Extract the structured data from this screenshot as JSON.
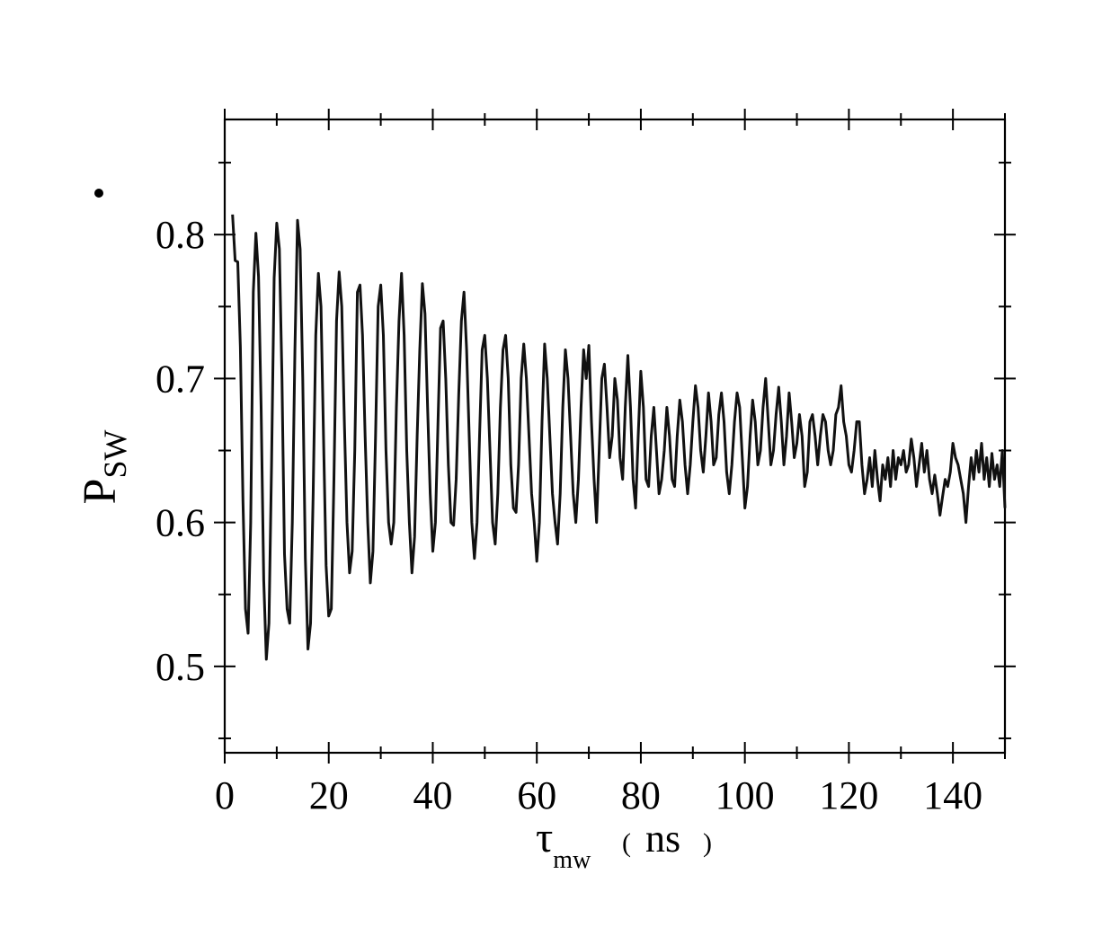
{
  "chart_data": {
    "type": "line",
    "xlabel": {
      "symbol": "τ",
      "subscript": "mw",
      "unit_open": "(",
      "unit": "ns",
      "unit_close": ")"
    },
    "ylabel": {
      "symbol": "P",
      "subscript": "SW"
    },
    "xlim": [
      0,
      150
    ],
    "ylim": [
      0.44,
      0.88
    ],
    "x_ticks": [
      0,
      20,
      40,
      60,
      80,
      100,
      120,
      140
    ],
    "x_tick_labels": [
      "0",
      "20",
      "40",
      "60",
      "80",
      "100",
      "120",
      "140"
    ],
    "x_minor_ticks": [
      10,
      30,
      50,
      70,
      90,
      110,
      130,
      150
    ],
    "y_ticks": [
      0.5,
      0.6,
      0.7,
      0.8
    ],
    "y_tick_labels": [
      "0.5",
      "0.6",
      "0.7",
      "0.8"
    ],
    "y_minor_ticks": [
      0.45,
      0.55,
      0.65,
      0.75,
      0.85
    ],
    "grid": false,
    "series": [
      {
        "color": "#111111",
        "points": [
          [
            1.5,
            0.814
          ],
          [
            2.0,
            0.782
          ],
          [
            2.5,
            0.781
          ],
          [
            3.0,
            0.722
          ],
          [
            3.5,
            0.615
          ],
          [
            4.0,
            0.54
          ],
          [
            4.5,
            0.523
          ],
          [
            5.0,
            0.6
          ],
          [
            5.5,
            0.76
          ],
          [
            6.0,
            0.801
          ],
          [
            6.5,
            0.771
          ],
          [
            7.0,
            0.68
          ],
          [
            7.5,
            0.56
          ],
          [
            8.0,
            0.505
          ],
          [
            8.5,
            0.53
          ],
          [
            9.0,
            0.64
          ],
          [
            9.5,
            0.77
          ],
          [
            10.0,
            0.808
          ],
          [
            10.5,
            0.79
          ],
          [
            11.0,
            0.7
          ],
          [
            11.5,
            0.578
          ],
          [
            12.0,
            0.54
          ],
          [
            12.5,
            0.53
          ],
          [
            13.0,
            0.6
          ],
          [
            13.5,
            0.72
          ],
          [
            14.0,
            0.81
          ],
          [
            14.5,
            0.79
          ],
          [
            15.0,
            0.7
          ],
          [
            15.5,
            0.575
          ],
          [
            16.0,
            0.512
          ],
          [
            16.5,
            0.53
          ],
          [
            17.0,
            0.62
          ],
          [
            17.5,
            0.73
          ],
          [
            18.0,
            0.773
          ],
          [
            18.5,
            0.75
          ],
          [
            19.0,
            0.66
          ],
          [
            19.5,
            0.57
          ],
          [
            20.0,
            0.535
          ],
          [
            20.5,
            0.54
          ],
          [
            21.0,
            0.63
          ],
          [
            21.5,
            0.74
          ],
          [
            22.0,
            0.774
          ],
          [
            22.5,
            0.75
          ],
          [
            23.0,
            0.67
          ],
          [
            23.5,
            0.6
          ],
          [
            24.0,
            0.565
          ],
          [
            24.5,
            0.58
          ],
          [
            25.0,
            0.65
          ],
          [
            25.5,
            0.76
          ],
          [
            26.0,
            0.765
          ],
          [
            26.5,
            0.73
          ],
          [
            27.0,
            0.66
          ],
          [
            27.5,
            0.6
          ],
          [
            28.0,
            0.558
          ],
          [
            28.5,
            0.58
          ],
          [
            29.0,
            0.66
          ],
          [
            29.5,
            0.75
          ],
          [
            30.0,
            0.765
          ],
          [
            30.5,
            0.73
          ],
          [
            31.0,
            0.65
          ],
          [
            31.5,
            0.6
          ],
          [
            32.0,
            0.585
          ],
          [
            32.5,
            0.6
          ],
          [
            33.0,
            0.68
          ],
          [
            33.5,
            0.74
          ],
          [
            34.0,
            0.773
          ],
          [
            34.5,
            0.73
          ],
          [
            35.0,
            0.65
          ],
          [
            35.5,
            0.6
          ],
          [
            36.0,
            0.565
          ],
          [
            36.5,
            0.59
          ],
          [
            37.0,
            0.66
          ],
          [
            37.5,
            0.72
          ],
          [
            38.0,
            0.766
          ],
          [
            38.5,
            0.745
          ],
          [
            39.0,
            0.68
          ],
          [
            39.5,
            0.62
          ],
          [
            40.0,
            0.58
          ],
          [
            40.5,
            0.6
          ],
          [
            41.0,
            0.67
          ],
          [
            41.5,
            0.735
          ],
          [
            42.0,
            0.74
          ],
          [
            42.5,
            0.7
          ],
          [
            43.0,
            0.64
          ],
          [
            43.5,
            0.6
          ],
          [
            44.0,
            0.598
          ],
          [
            44.5,
            0.63
          ],
          [
            45.0,
            0.69
          ],
          [
            45.5,
            0.74
          ],
          [
            46.0,
            0.76
          ],
          [
            46.5,
            0.72
          ],
          [
            47.0,
            0.66
          ],
          [
            47.5,
            0.6
          ],
          [
            48.0,
            0.575
          ],
          [
            48.5,
            0.6
          ],
          [
            49.0,
            0.66
          ],
          [
            49.5,
            0.72
          ],
          [
            50.0,
            0.73
          ],
          [
            50.5,
            0.7
          ],
          [
            51.0,
            0.65
          ],
          [
            51.5,
            0.6
          ],
          [
            52.0,
            0.585
          ],
          [
            52.5,
            0.62
          ],
          [
            53.0,
            0.68
          ],
          [
            53.5,
            0.72
          ],
          [
            54.0,
            0.73
          ],
          [
            54.5,
            0.7
          ],
          [
            55.0,
            0.64
          ],
          [
            55.5,
            0.61
          ],
          [
            56.0,
            0.607
          ],
          [
            56.5,
            0.64
          ],
          [
            57.0,
            0.7
          ],
          [
            57.5,
            0.724
          ],
          [
            58.0,
            0.7
          ],
          [
            58.5,
            0.66
          ],
          [
            59.0,
            0.62
          ],
          [
            59.5,
            0.6
          ],
          [
            60.0,
            0.573
          ],
          [
            60.5,
            0.6
          ],
          [
            61.0,
            0.67
          ],
          [
            61.5,
            0.724
          ],
          [
            62.0,
            0.7
          ],
          [
            62.5,
            0.66
          ],
          [
            63.0,
            0.62
          ],
          [
            63.5,
            0.6
          ],
          [
            64.0,
            0.585
          ],
          [
            64.5,
            0.62
          ],
          [
            65.0,
            0.68
          ],
          [
            65.5,
            0.72
          ],
          [
            66.0,
            0.7
          ],
          [
            66.5,
            0.66
          ],
          [
            67.0,
            0.62
          ],
          [
            67.5,
            0.6
          ],
          [
            68.0,
            0.63
          ],
          [
            68.5,
            0.68
          ],
          [
            69.0,
            0.72
          ],
          [
            69.5,
            0.7
          ],
          [
            70.0,
            0.723
          ],
          [
            70.5,
            0.67
          ],
          [
            71.0,
            0.63
          ],
          [
            71.5,
            0.6
          ],
          [
            72.0,
            0.65
          ],
          [
            72.5,
            0.7
          ],
          [
            73.0,
            0.71
          ],
          [
            73.5,
            0.68
          ],
          [
            74.0,
            0.645
          ],
          [
            74.5,
            0.66
          ],
          [
            75.0,
            0.7
          ],
          [
            75.5,
            0.685
          ],
          [
            76.0,
            0.645
          ],
          [
            76.5,
            0.63
          ],
          [
            77.0,
            0.68
          ],
          [
            77.5,
            0.716
          ],
          [
            78.0,
            0.68
          ],
          [
            78.5,
            0.63
          ],
          [
            79.0,
            0.61
          ],
          [
            79.5,
            0.66
          ],
          [
            80.0,
            0.705
          ],
          [
            80.5,
            0.68
          ],
          [
            81.0,
            0.63
          ],
          [
            81.5,
            0.625
          ],
          [
            82.0,
            0.66
          ],
          [
            82.5,
            0.68
          ],
          [
            83.0,
            0.65
          ],
          [
            83.5,
            0.62
          ],
          [
            84.0,
            0.63
          ],
          [
            84.5,
            0.65
          ],
          [
            85.0,
            0.68
          ],
          [
            85.5,
            0.66
          ],
          [
            86.0,
            0.63
          ],
          [
            86.5,
            0.625
          ],
          [
            87.0,
            0.66
          ],
          [
            87.5,
            0.685
          ],
          [
            88.0,
            0.67
          ],
          [
            88.5,
            0.64
          ],
          [
            89.0,
            0.62
          ],
          [
            89.5,
            0.64
          ],
          [
            90.0,
            0.67
          ],
          [
            90.5,
            0.695
          ],
          [
            91.0,
            0.68
          ],
          [
            91.5,
            0.65
          ],
          [
            92.0,
            0.635
          ],
          [
            92.5,
            0.66
          ],
          [
            93.0,
            0.69
          ],
          [
            93.5,
            0.67
          ],
          [
            94.0,
            0.64
          ],
          [
            94.5,
            0.645
          ],
          [
            95.0,
            0.675
          ],
          [
            95.5,
            0.69
          ],
          [
            96.0,
            0.67
          ],
          [
            96.5,
            0.635
          ],
          [
            97.0,
            0.62
          ],
          [
            97.5,
            0.64
          ],
          [
            98.0,
            0.67
          ],
          [
            98.5,
            0.69
          ],
          [
            99.0,
            0.68
          ],
          [
            99.5,
            0.645
          ],
          [
            100.0,
            0.61
          ],
          [
            100.5,
            0.625
          ],
          [
            101.0,
            0.66
          ],
          [
            101.5,
            0.685
          ],
          [
            102.0,
            0.67
          ],
          [
            102.5,
            0.64
          ],
          [
            103.0,
            0.65
          ],
          [
            103.5,
            0.68
          ],
          [
            104.0,
            0.7
          ],
          [
            104.5,
            0.67
          ],
          [
            105.0,
            0.64
          ],
          [
            105.5,
            0.65
          ],
          [
            106.0,
            0.675
          ],
          [
            106.5,
            0.694
          ],
          [
            107.0,
            0.67
          ],
          [
            107.5,
            0.64
          ],
          [
            108.0,
            0.66
          ],
          [
            108.5,
            0.69
          ],
          [
            109.0,
            0.67
          ],
          [
            109.5,
            0.645
          ],
          [
            110.0,
            0.655
          ],
          [
            110.5,
            0.675
          ],
          [
            111.0,
            0.66
          ],
          [
            111.5,
            0.625
          ],
          [
            112.0,
            0.635
          ],
          [
            112.5,
            0.67
          ],
          [
            113.0,
            0.675
          ],
          [
            113.5,
            0.66
          ],
          [
            114.0,
            0.64
          ],
          [
            114.5,
            0.66
          ],
          [
            115.0,
            0.675
          ],
          [
            115.5,
            0.67
          ],
          [
            116.0,
            0.65
          ],
          [
            116.5,
            0.64
          ],
          [
            117.0,
            0.65
          ],
          [
            117.5,
            0.675
          ],
          [
            118.0,
            0.68
          ],
          [
            118.5,
            0.695
          ],
          [
            119.0,
            0.67
          ],
          [
            119.5,
            0.66
          ],
          [
            120.0,
            0.64
          ],
          [
            120.5,
            0.635
          ],
          [
            121.0,
            0.65
          ],
          [
            121.5,
            0.67
          ],
          [
            122.0,
            0.67
          ],
          [
            122.5,
            0.64
          ],
          [
            123.0,
            0.62
          ],
          [
            123.5,
            0.63
          ],
          [
            124.0,
            0.645
          ],
          [
            124.5,
            0.625
          ],
          [
            125.0,
            0.65
          ],
          [
            125.5,
            0.63
          ],
          [
            126.0,
            0.615
          ],
          [
            126.5,
            0.64
          ],
          [
            127.0,
            0.63
          ],
          [
            127.5,
            0.645
          ],
          [
            128.0,
            0.625
          ],
          [
            128.5,
            0.65
          ],
          [
            129.0,
            0.63
          ],
          [
            129.5,
            0.645
          ],
          [
            130.0,
            0.64
          ],
          [
            130.5,
            0.65
          ],
          [
            131.0,
            0.635
          ],
          [
            131.5,
            0.64
          ],
          [
            132.0,
            0.658
          ],
          [
            132.5,
            0.645
          ],
          [
            133.0,
            0.625
          ],
          [
            133.5,
            0.64
          ],
          [
            134.0,
            0.655
          ],
          [
            134.5,
            0.635
          ],
          [
            135.0,
            0.65
          ],
          [
            135.5,
            0.63
          ],
          [
            136.0,
            0.62
          ],
          [
            136.5,
            0.633
          ],
          [
            137.0,
            0.62
          ],
          [
            137.5,
            0.605
          ],
          [
            138.0,
            0.618
          ],
          [
            138.5,
            0.63
          ],
          [
            139.0,
            0.625
          ],
          [
            139.5,
            0.635
          ],
          [
            140.0,
            0.655
          ],
          [
            140.5,
            0.645
          ],
          [
            141.0,
            0.64
          ],
          [
            141.5,
            0.63
          ],
          [
            142.0,
            0.62
          ],
          [
            142.5,
            0.6
          ],
          [
            143.0,
            0.625
          ],
          [
            143.5,
            0.645
          ],
          [
            144.0,
            0.63
          ],
          [
            144.5,
            0.65
          ],
          [
            145.0,
            0.635
          ],
          [
            145.5,
            0.655
          ],
          [
            146.0,
            0.63
          ],
          [
            146.5,
            0.645
          ],
          [
            147.0,
            0.625
          ],
          [
            147.5,
            0.648
          ],
          [
            148.0,
            0.63
          ],
          [
            148.5,
            0.64
          ],
          [
            149.0,
            0.625
          ],
          [
            149.5,
            0.65
          ],
          [
            150.0,
            0.61
          ]
        ]
      }
    ]
  }
}
